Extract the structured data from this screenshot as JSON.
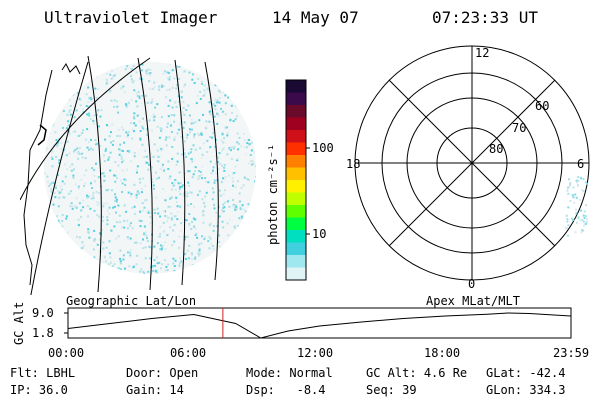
{
  "header": {
    "instrument": "Ultraviolet Imager",
    "date": "14 May 07",
    "time": "07:23:33 UT"
  },
  "colorbar": {
    "unit": "photon cm⁻²s⁻¹",
    "ticks": [
      "100",
      "10"
    ],
    "colors": [
      "#1a0a33",
      "#3a0a4a",
      "#6a0a2a",
      "#a00020",
      "#d01018",
      "#ff3000",
      "#ff8000",
      "#ffc000",
      "#fff000",
      "#c0ff00",
      "#60ff00",
      "#00ff40",
      "#00e0c0",
      "#40d0e0",
      "#a0e8f0",
      "#e0f4f8"
    ]
  },
  "polar": {
    "mlt_labels": {
      "top": "12",
      "left": "18",
      "right": "6",
      "bottom": "0"
    },
    "lat_labels": [
      "60",
      "70",
      "80"
    ]
  },
  "timeline": {
    "ylabel": "GC Alt",
    "yticks": [
      "9.0",
      "1.8"
    ],
    "left_title": "Geographic Lat/Lon",
    "right_title": "Apex MLat/MLT",
    "xticks": [
      "00:00",
      "06:00",
      "12:00",
      "18:00",
      "23:59"
    ],
    "current_time_hours": 7.39,
    "marker_color": "#d02020"
  },
  "footer": {
    "row1": [
      {
        "label": "Flt:",
        "value": "LBHL"
      },
      {
        "label": "Door:",
        "value": "Open"
      },
      {
        "label": "Mode:",
        "value": "Normal"
      },
      {
        "label": "GC Alt:",
        "value": "4.6 Re"
      },
      {
        "label": "GLat:",
        "value": "-42.4"
      }
    ],
    "row2": [
      {
        "label": "IP:",
        "value": "36.0"
      },
      {
        "label": "Gain:",
        "value": "14"
      },
      {
        "label": "Dsp:",
        "value": "-8.4"
      },
      {
        "label": "Seq:",
        "value": "39"
      },
      {
        "label": "GLon:",
        "value": "334.3"
      }
    ]
  }
}
